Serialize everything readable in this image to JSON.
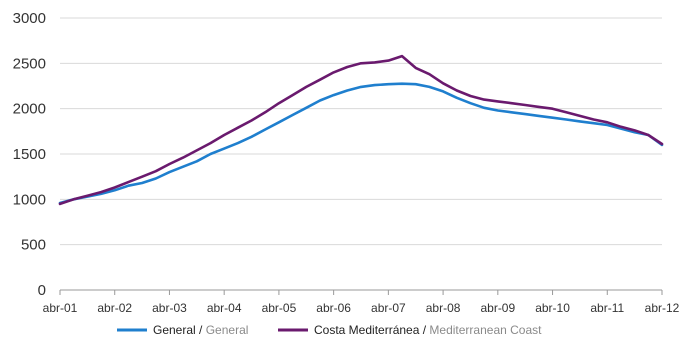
{
  "chart_data": {
    "type": "line",
    "title": "",
    "xlabel": "",
    "ylabel": "",
    "ylim": [
      0,
      3000
    ],
    "y_ticks": [
      "0",
      "500",
      "1000",
      "1500",
      "2000",
      "2500",
      "3000"
    ],
    "x_ticks": [
      "abr-01",
      "abr-02",
      "abr-03",
      "abr-04",
      "abr-05",
      "abr-06",
      "abr-07",
      "abr-08",
      "abr-09",
      "abr-10",
      "abr-11",
      "abr-12"
    ],
    "grid": "horizontal",
    "legend_position": "bottom",
    "x_unit": "quarter (from abr-01)",
    "x": [
      "abr-01",
      "jul-01",
      "oct-01",
      "ene-02",
      "abr-02",
      "jul-02",
      "oct-02",
      "ene-03",
      "abr-03",
      "jul-03",
      "oct-03",
      "ene-04",
      "abr-04",
      "jul-04",
      "oct-04",
      "ene-05",
      "abr-05",
      "jul-05",
      "oct-05",
      "ene-06",
      "abr-06",
      "jul-06",
      "oct-06",
      "ene-07",
      "abr-07",
      "jul-07",
      "oct-07",
      "ene-08",
      "abr-08",
      "jul-08",
      "oct-08",
      "ene-09",
      "abr-09",
      "jul-09",
      "oct-09",
      "ene-10",
      "abr-10",
      "jul-10",
      "oct-10",
      "ene-11",
      "abr-11",
      "jul-11",
      "oct-11",
      "ene-12",
      "abr-12"
    ],
    "series": [
      {
        "name": "General",
        "name_secondary": "General",
        "color": "#1f7fce",
        "values": [
          960,
          1000,
          1030,
          1060,
          1100,
          1150,
          1180,
          1230,
          1300,
          1360,
          1420,
          1500,
          1560,
          1620,
          1690,
          1770,
          1850,
          1930,
          2010,
          2090,
          2150,
          2200,
          2240,
          2260,
          2270,
          2275,
          2270,
          2240,
          2190,
          2120,
          2060,
          2010,
          1980,
          1960,
          1940,
          1920,
          1900,
          1880,
          1860,
          1840,
          1820,
          1780,
          1740,
          1710,
          1600
        ]
      },
      {
        "name": "Costa Mediterránea",
        "name_secondary": "Mediterranean Coast",
        "color": "#6a1a6e",
        "values": [
          950,
          1000,
          1040,
          1080,
          1130,
          1190,
          1250,
          1310,
          1390,
          1460,
          1540,
          1620,
          1710,
          1790,
          1870,
          1960,
          2060,
          2150,
          2240,
          2320,
          2400,
          2460,
          2500,
          2510,
          2530,
          2580,
          2450,
          2380,
          2280,
          2200,
          2140,
          2100,
          2080,
          2060,
          2040,
          2020,
          2000,
          1960,
          1920,
          1880,
          1850,
          1800,
          1760,
          1710,
          1610
        ]
      }
    ]
  }
}
